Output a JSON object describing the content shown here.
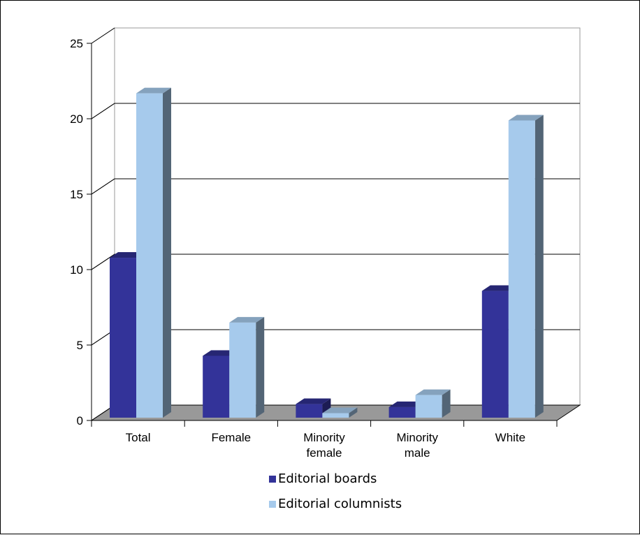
{
  "chart_data": {
    "type": "bar",
    "style": "3d-clustered-column",
    "categories": [
      [
        "Total"
      ],
      [
        "Female"
      ],
      [
        "Minority",
        "female"
      ],
      [
        "Minority",
        "male"
      ],
      [
        "White"
      ]
    ],
    "series": [
      {
        "name": "Editorial boards",
        "color": "#333399",
        "values": [
          10.6,
          4.1,
          0.9,
          0.7,
          8.4
        ]
      },
      {
        "name": "Editorial columnists",
        "color": "#A6CAEC",
        "values": [
          21.5,
          6.3,
          0.3,
          1.5,
          19.7
        ]
      }
    ],
    "yaxis": {
      "min": 0,
      "max": 25,
      "ticks": [
        "0",
        "5",
        "10",
        "15",
        "20",
        "25"
      ]
    },
    "gridlines": true,
    "legend": {
      "position": "bottom"
    },
    "floor_color": "#999999"
  }
}
